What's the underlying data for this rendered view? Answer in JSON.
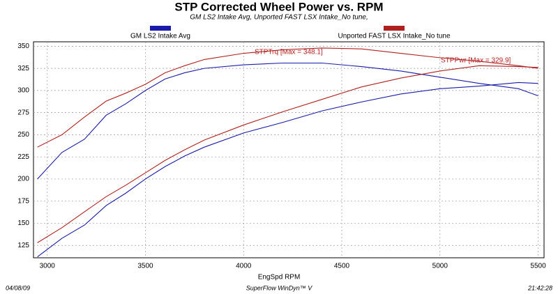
{
  "chart_data": {
    "type": "line",
    "title": "STP Corrected Wheel Power vs. RPM",
    "subtitle": "GM LS2 Intake Avg, Unported FAST LSX Intake_No tune,",
    "x_label": "EngSpd  RPM",
    "footer_left": "04/08/09",
    "footer_center": "SuperFlow WinDyn™ V",
    "footer_right": "21:42:28",
    "torque_annotation": "STPTrq [Max = 348.1]",
    "power_annotation": "STPPwr [Max = 329.9]",
    "x": [
      2950,
      3075,
      3190,
      3300,
      3400,
      3500,
      3600,
      3700,
      3800,
      4000,
      4200,
      4400,
      4600,
      4800,
      5000,
      5200,
      5400,
      5500
    ],
    "series": [
      {
        "name": "GM LS2 Intake Avg",
        "color": "#1a1aa8",
        "torque": [
          200,
          230,
          245,
          272,
          285,
          300,
          313,
          320,
          325,
          329,
          331,
          331,
          327,
          322,
          315,
          308,
          302,
          294
        ],
        "power": [
          112,
          133,
          148,
          170,
          184,
          200,
          214,
          226,
          236,
          252,
          264,
          277,
          287,
          296,
          302,
          305,
          309,
          308
        ]
      },
      {
        "name": "Unported FAST LSX Intake_No tune",
        "color": "#b02020",
        "torque": [
          236,
          250,
          270,
          288,
          297,
          307,
          320,
          328,
          335,
          342,
          346,
          348,
          347,
          342,
          337,
          333,
          328,
          325
        ],
        "power": [
          128,
          145,
          163,
          180,
          193,
          207,
          221,
          233,
          244,
          261,
          276,
          290,
          304,
          314,
          322,
          328,
          327,
          326
        ]
      }
    ],
    "xlim": [
      2930,
      5530
    ],
    "ylim": [
      111,
      355
    ],
    "xticks": [
      3000,
      3500,
      4000,
      4500,
      5000,
      5500
    ],
    "yticks": [
      125,
      150,
      175,
      200,
      225,
      250,
      275,
      300,
      325,
      350
    ],
    "grid": true
  }
}
